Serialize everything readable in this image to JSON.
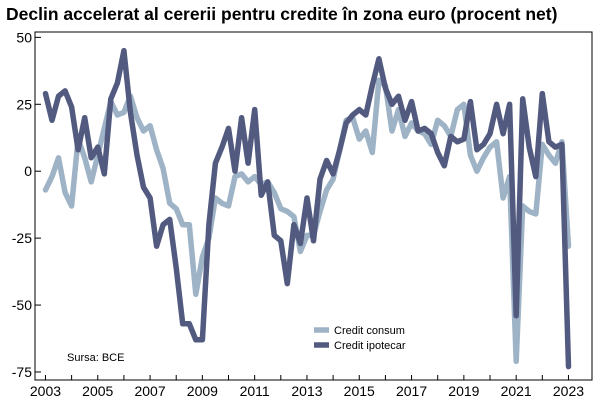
{
  "chart_data": {
    "type": "line",
    "title": "Declin accelerat al cererii pentru credite în zona euro (procent net)",
    "source": "Sursa: BCE",
    "xlabel": "",
    "ylabel": "",
    "x_ticks": [
      "2003",
      "2005",
      "2007",
      "2009",
      "2011",
      "2013",
      "2015",
      "2017",
      "2019",
      "2021",
      "2023"
    ],
    "y_ticks": [
      50,
      25,
      0,
      -25,
      -50,
      -75
    ],
    "ylim": [
      -78,
      52
    ],
    "xlim": [
      2002.6,
      2023.9
    ],
    "grid": false,
    "legend_position": "bottom-center",
    "x": [
      2003.0,
      2003.25,
      2003.5,
      2003.75,
      2004.0,
      2004.25,
      2004.5,
      2004.75,
      2005.0,
      2005.25,
      2005.5,
      2005.75,
      2006.0,
      2006.25,
      2006.5,
      2006.75,
      2007.0,
      2007.25,
      2007.5,
      2007.75,
      2008.0,
      2008.25,
      2008.5,
      2008.75,
      2009.0,
      2009.25,
      2009.5,
      2009.75,
      2010.0,
      2010.25,
      2010.5,
      2010.75,
      2011.0,
      2011.25,
      2011.5,
      2011.75,
      2012.0,
      2012.25,
      2012.5,
      2012.75,
      2013.0,
      2013.25,
      2013.5,
      2013.75,
      2014.0,
      2014.25,
      2014.5,
      2014.75,
      2015.0,
      2015.25,
      2015.5,
      2015.75,
      2016.0,
      2016.25,
      2016.5,
      2016.75,
      2017.0,
      2017.25,
      2017.5,
      2017.75,
      2018.0,
      2018.25,
      2018.5,
      2018.75,
      2019.0,
      2019.25,
      2019.5,
      2019.75,
      2020.0,
      2020.25,
      2020.5,
      2020.75,
      2021.0,
      2021.25,
      2021.5,
      2021.75,
      2022.0,
      2022.25,
      2022.5,
      2022.75,
      2023.0
    ],
    "series": [
      {
        "name": "Credit consum",
        "color": "#9eb3c6",
        "values": [
          -7,
          -2,
          5,
          -8,
          -13,
          12,
          5,
          -4,
          6,
          16,
          26,
          21,
          22,
          28,
          20,
          15,
          17,
          8,
          1,
          -12,
          -14,
          -20,
          -20,
          -46,
          -32,
          -25,
          -10,
          -12,
          -13,
          -2,
          -1,
          -4,
          -2,
          -5,
          -4,
          -8,
          -14,
          -15,
          -17,
          -30,
          -24,
          -24,
          -15,
          -7,
          -3,
          8,
          19,
          20,
          12,
          15,
          7,
          34,
          32,
          15,
          23,
          13,
          18,
          15,
          14,
          10,
          19,
          17,
          13,
          23,
          25,
          6,
          0,
          5,
          9,
          11,
          -10,
          -2,
          -71,
          -13,
          -15,
          -16,
          10,
          6,
          3,
          11,
          -28
        ]
      },
      {
        "name": "Credit ipotecar",
        "color": "#525a80",
        "values": [
          29,
          19,
          28,
          30,
          24,
          8,
          20,
          5,
          9,
          -1,
          27,
          33,
          45,
          22,
          6,
          -6,
          -10,
          -28,
          -20,
          -18,
          -36,
          -57,
          -57,
          -63,
          -63,
          -20,
          3,
          9,
          16,
          0,
          20,
          3,
          23,
          -9,
          -4,
          -24,
          -26,
          -42,
          -20,
          -27,
          -10,
          -26,
          -3,
          4,
          -1,
          8,
          18,
          21,
          23,
          21,
          32,
          42,
          31,
          25,
          28,
          19,
          26,
          15,
          16,
          14,
          7,
          2,
          13,
          11,
          12,
          26,
          8,
          10,
          14,
          25,
          14,
          25,
          -54,
          27,
          9,
          -2,
          29,
          11,
          9,
          10,
          -73
        ]
      }
    ]
  }
}
